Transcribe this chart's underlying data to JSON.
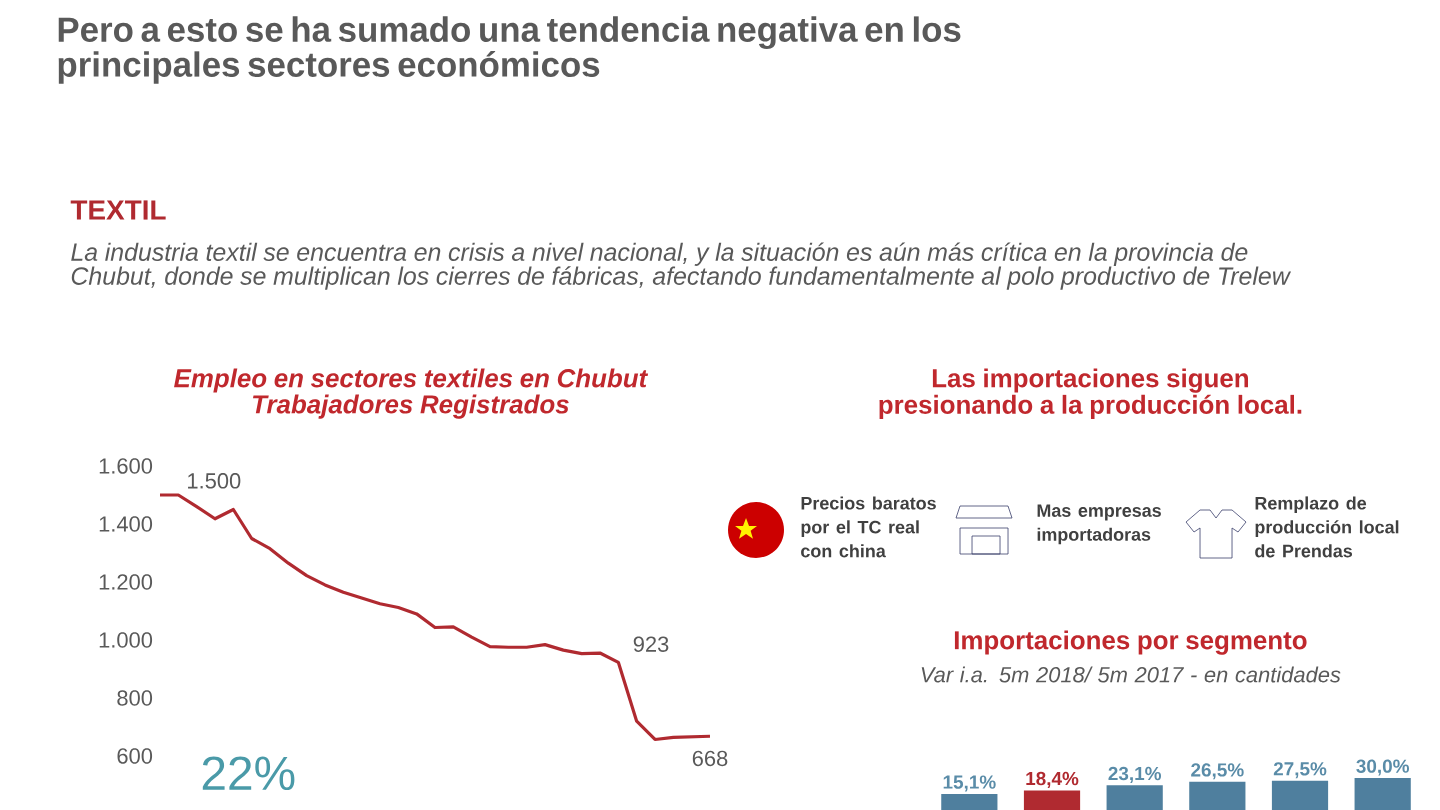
{
  "chart_data": [
    {
      "type": "other",
      "title": "Pero a esto se ha sumado una tendencia negativa en los principales sectores económicos",
      "annotations": [
        "TEXTIL",
        "La industria textil se encuentra en crisis a nivel nacional, y la situación es aún más crítica en la provincia de Chubut, donde se multiplican los cierres de fábricas, afectando fundamentalmente al polo productivo de Trelew",
        "Las importaciones siguen presionando a la producción local.",
        "Precios baratos por el TC real con china",
        "Mas empresas importadoras",
        "Remplazo de producción local de Prendas"
      ]
    },
    {
      "type": "line",
      "title": "Empleo en sectores textiles en Chubut",
      "subtitle": "Trabajadores Registrados",
      "categories": [
        null,
        null,
        null,
        null,
        null,
        null,
        null,
        null,
        null,
        null,
        null,
        null,
        null,
        null,
        null,
        null,
        null,
        null,
        null,
        null,
        null,
        null,
        null,
        null,
        null,
        null,
        null,
        null,
        null,
        null,
        null
      ],
      "values": [
        1500,
        1500,
        1460,
        1418,
        1450,
        1350,
        1315,
        1265,
        1222,
        1190,
        1165,
        1145,
        1125,
        1112,
        1090,
        1043,
        1045,
        1010,
        977,
        975,
        975,
        984,
        965,
        953,
        955,
        923,
        720,
        657,
        664,
        666,
        668
      ],
      "value_labels": [
        "1.500",
        null,
        null,
        null,
        null,
        null,
        null,
        null,
        null,
        null,
        null,
        null,
        null,
        null,
        null,
        null,
        null,
        null,
        null,
        null,
        null,
        null,
        null,
        null,
        null,
        "923",
        null,
        null,
        null,
        null,
        "668"
      ],
      "color": "#b02a30",
      "ylim": [
        600,
        1600
      ],
      "yticks": [
        {
          "value": 600,
          "label": "600"
        },
        {
          "value": 800,
          "label": "800"
        },
        {
          "value": 1000,
          "label": "1.000"
        },
        {
          "value": 1200,
          "label": "1.200"
        },
        {
          "value": 1400,
          "label": "1.400"
        },
        {
          "value": 1600,
          "label": "1.600"
        }
      ],
      "tick_labels": "y",
      "annotations": [
        "22%"
      ]
    },
    {
      "type": "bar",
      "title": "Importaciones por segmento",
      "subtitle": "Var i.a. 5m 2018/ 5m 2017  - en cantidades",
      "categories": [
        null,
        null,
        null,
        null,
        null,
        null
      ],
      "values": [
        15.1,
        18.4,
        23.1,
        26.5,
        27.5,
        30.0
      ],
      "value_labels": [
        "15,1%",
        "18,4%",
        "23,1%",
        "26,5%",
        "27,5%",
        "30,0%"
      ],
      "colors": [
        "#4f7f9e",
        "#b02a30",
        "#4f7f9e",
        "#4f7f9e",
        "#4f7f9e",
        "#4f7f9e"
      ]
    }
  ]
}
